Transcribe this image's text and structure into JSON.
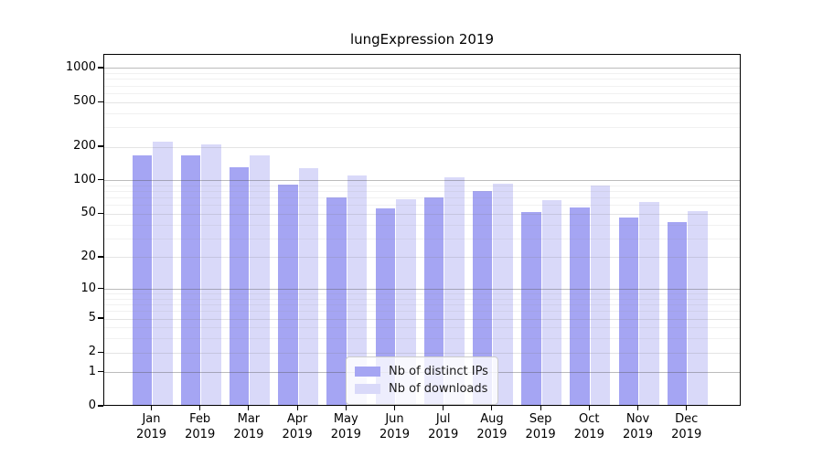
{
  "title": "lungExpression 2019",
  "chart_data": {
    "type": "bar",
    "title": "lungExpression 2019",
    "categories": [
      "Jan",
      "Feb",
      "Mar",
      "Apr",
      "May",
      "Jun",
      "Jul",
      "Aug",
      "Sep",
      "Oct",
      "Nov",
      "Dec"
    ],
    "x_sublabel": "2019",
    "series": [
      {
        "name": "Nb of distinct IPs",
        "color": "#a5a5f3",
        "values": [
          164,
          162,
          127,
          89,
          68,
          54,
          68,
          78,
          50,
          55,
          45,
          41
        ]
      },
      {
        "name": "Nb of downloads",
        "color": "#d9d9f9",
        "values": [
          214,
          204,
          163,
          124,
          108,
          66,
          104,
          90,
          64,
          88,
          62,
          51
        ]
      }
    ],
    "yscale": "log1p",
    "y_tick_labels": [
      0,
      1,
      2,
      5,
      10,
      20,
      50,
      100,
      200,
      500,
      1000
    ],
    "y_minor_gridlines": [
      3,
      4,
      6,
      7,
      8,
      9,
      30,
      40,
      60,
      70,
      80,
      90,
      300,
      400,
      600,
      700,
      800,
      900
    ],
    "ylim": [
      0,
      1300
    ],
    "xlabel": "",
    "ylabel": "",
    "grid": true,
    "legend_position": "inside-bottom-center",
    "axis_color": "#000000",
    "background_color": "#ffffff"
  }
}
